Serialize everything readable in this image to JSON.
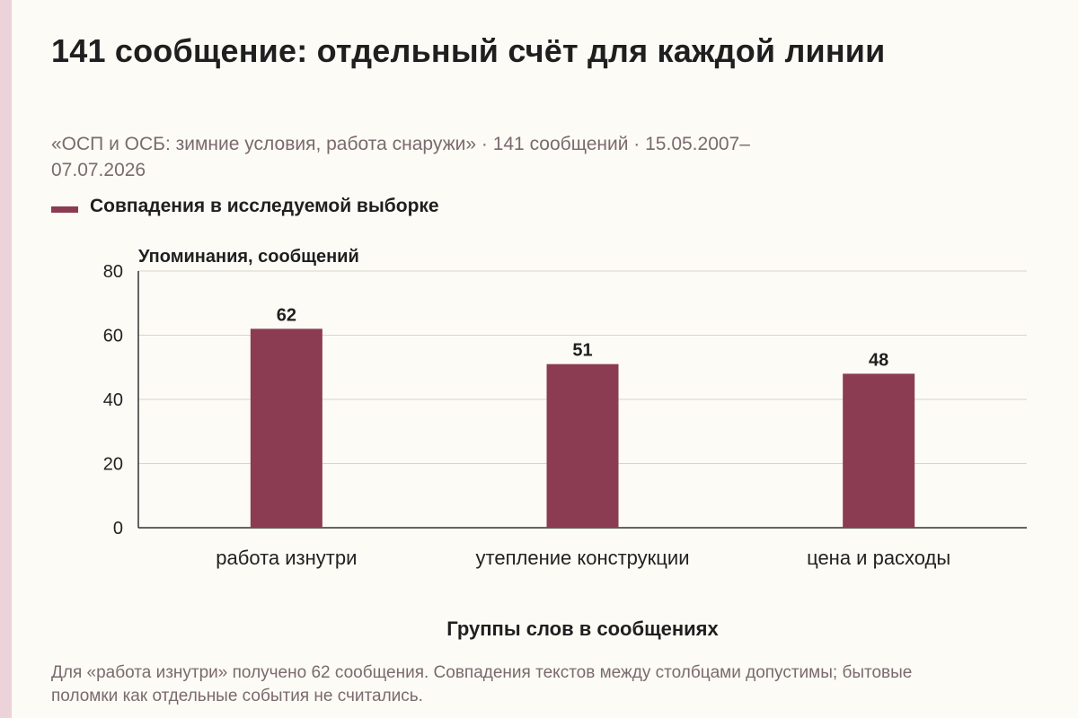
{
  "title": "141 сообщение: отдельный счёт для каждой линии",
  "subtitle": "«ОСП и ОСБ: зимние условия, работа снаружи» · 141 сообщений · 15.05.2007–07.07.2026",
  "note": "Для «работа изнутри» получено 62 сообщения. Совпадения текстов между столбцами допустимы; бытовые поломки как отдельные события не считались.",
  "colors": {
    "bar": "#8b3c52",
    "grid": "#d9d5cc",
    "axis": "#333333",
    "stripe": "#ecd3da",
    "background": "#fdfbf5"
  },
  "chart_data": {
    "type": "bar",
    "categories": [
      "работа изнутри",
      "утепление конструкции",
      "цена и расходы"
    ],
    "series": [
      {
        "name": "Совпадения в исследуемой выборке",
        "values": [
          62,
          51,
          48
        ]
      }
    ],
    "data_labels": [
      "62",
      "51",
      "48"
    ],
    "ylabel": "Упоминания, сообщений",
    "xlabel": "Группы слов в сообщениях",
    "ylim": [
      0,
      80
    ],
    "yticks": [
      0,
      20,
      40,
      60,
      80
    ],
    "grid": true,
    "legend_position": "top-left"
  }
}
